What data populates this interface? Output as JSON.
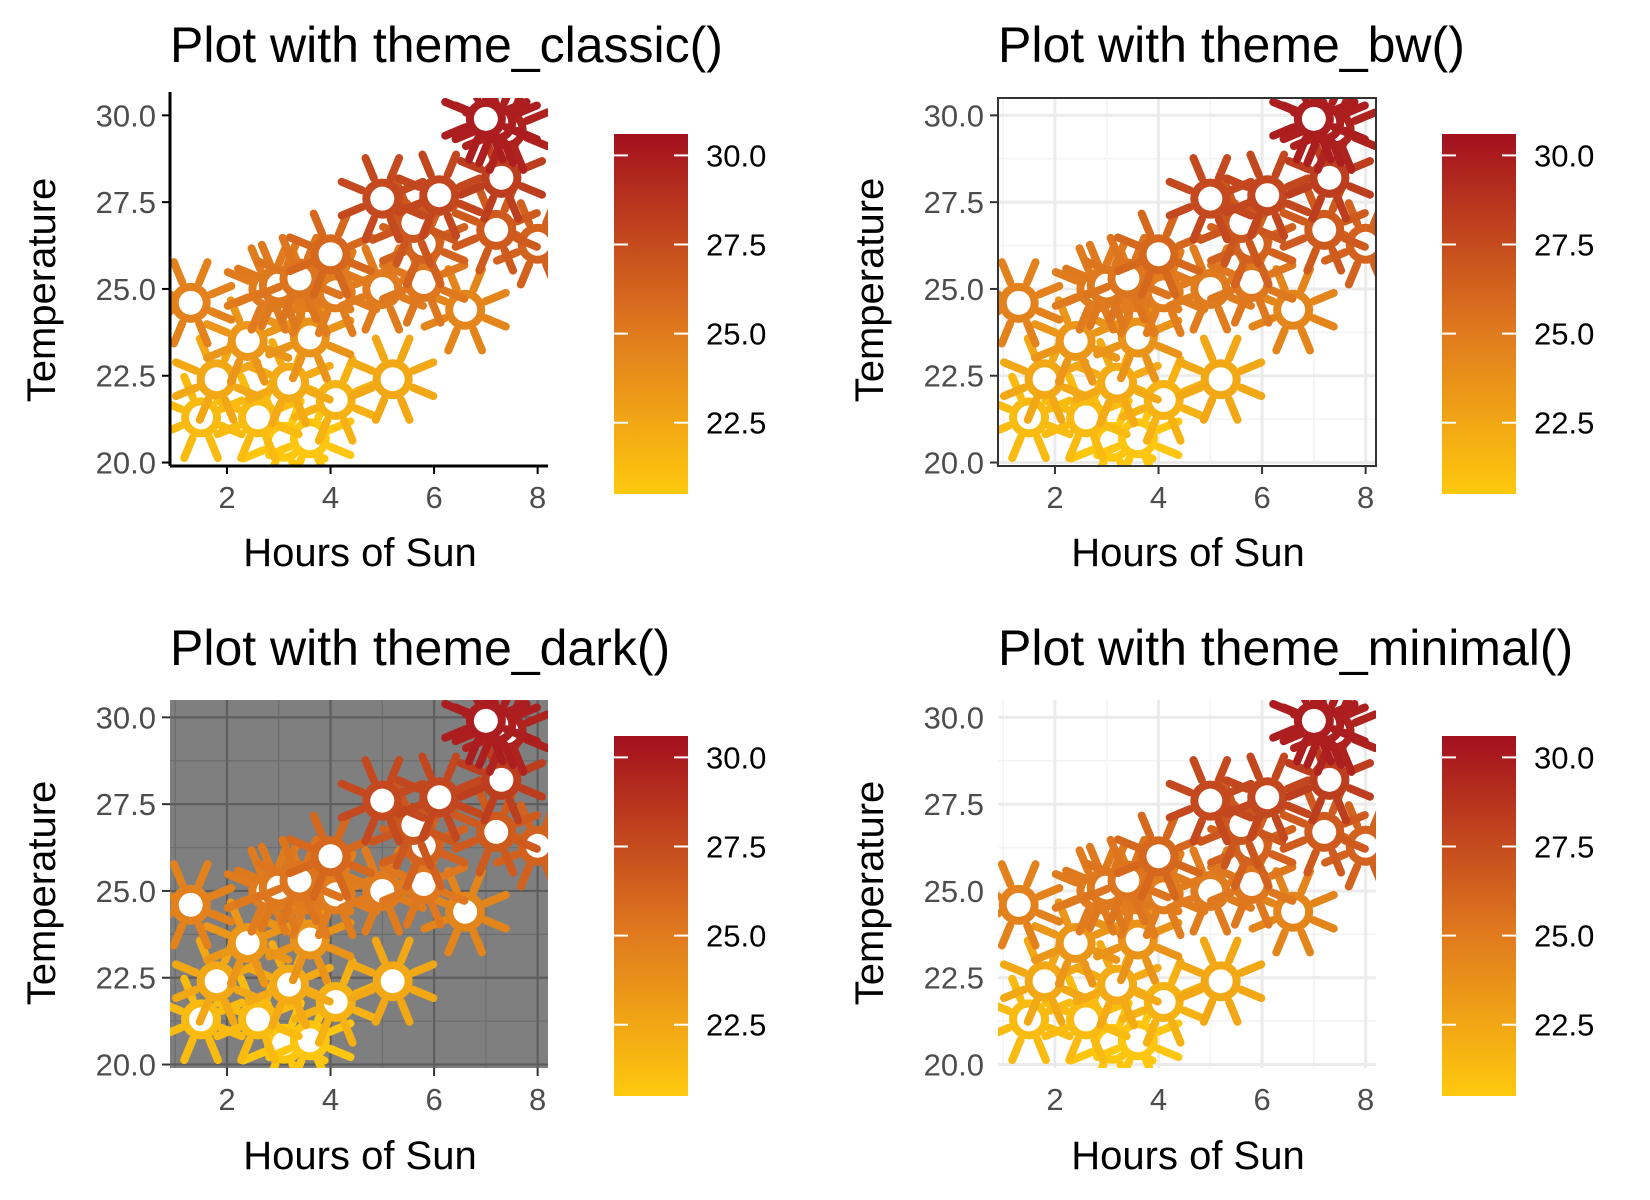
{
  "chart_data": [
    {
      "type": "scatter",
      "title": "Plot with theme_classic()",
      "theme": "classic",
      "grid": false,
      "xlabel": "Hours of Sun",
      "ylabel": "Temperature",
      "xlim": [
        0.9,
        8.2
      ],
      "ylim": [
        19.9,
        30.5
      ],
      "xticks": [
        2,
        4,
        6,
        8
      ],
      "xtick_labels": [
        "2",
        "4",
        "6",
        "8"
      ],
      "yticks": [
        20,
        22.5,
        25,
        27.5,
        30
      ],
      "ytick_labels": [
        "20.0",
        "22.5",
        "25.0",
        "27.5",
        "30.0"
      ],
      "marker": "sun-icon",
      "legend_position": "right",
      "legend": {
        "type": "colorbar",
        "ticks": [
          22.5,
          25,
          27.5,
          30
        ],
        "tick_labels": [
          "22.5",
          "25.0",
          "27.5",
          "30.0"
        ],
        "limits": [
          20.5,
          30.6
        ],
        "low_color": "#FFC90E",
        "mid_color": "#E07A1E",
        "high_color": "#A3101E"
      },
      "points": [
        [
          1.3,
          24.6
        ],
        [
          1.5,
          21.3
        ],
        [
          1.8,
          22.4
        ],
        [
          2.4,
          23.5
        ],
        [
          2.6,
          21.3
        ],
        [
          3.0,
          25.1
        ],
        [
          3.1,
          20.6
        ],
        [
          3.2,
          22.3
        ],
        [
          3.4,
          25.3
        ],
        [
          3.6,
          20.7
        ],
        [
          3.6,
          23.6
        ],
        [
          3.6,
          24.9
        ],
        [
          4.1,
          21.8
        ],
        [
          4.0,
          26.0
        ],
        [
          4.1,
          24.9
        ],
        [
          5.0,
          25.0
        ],
        [
          5.0,
          27.6
        ],
        [
          5.2,
          22.4
        ],
        [
          5.8,
          26.3
        ],
        [
          5.8,
          25.2
        ],
        [
          6.1,
          27.7
        ],
        [
          6.6,
          24.4
        ],
        [
          7.2,
          26.7
        ],
        [
          7.2,
          29.8
        ],
        [
          7.3,
          28.2
        ],
        [
          8.0,
          26.3
        ],
        [
          7.0,
          29.9
        ],
        [
          7.4,
          29.6
        ],
        [
          5.6,
          26.9
        ],
        [
          2.8,
          25.0
        ]
      ]
    },
    {
      "type": "scatter",
      "title": "Plot with theme_bw()",
      "theme": "bw",
      "grid": true,
      "xlabel": "Hours of Sun",
      "ylabel": "Temperature",
      "xlim": [
        0.9,
        8.2
      ],
      "ylim": [
        19.9,
        30.5
      ],
      "xticks": [
        2,
        4,
        6,
        8
      ],
      "xtick_labels": [
        "2",
        "4",
        "6",
        "8"
      ],
      "yticks": [
        20,
        22.5,
        25,
        27.5,
        30
      ],
      "ytick_labels": [
        "20.0",
        "22.5",
        "25.0",
        "27.5",
        "30.0"
      ],
      "marker": "sun-icon",
      "legend_position": "right",
      "legend": {
        "type": "colorbar",
        "ticks": [
          22.5,
          25,
          27.5,
          30
        ],
        "tick_labels": [
          "22.5",
          "25.0",
          "27.5",
          "30.0"
        ],
        "limits": [
          20.5,
          30.6
        ],
        "low_color": "#FFC90E",
        "mid_color": "#E07A1E",
        "high_color": "#A3101E"
      },
      "points": [
        [
          1.3,
          24.6
        ],
        [
          1.5,
          21.3
        ],
        [
          1.8,
          22.4
        ],
        [
          2.4,
          23.5
        ],
        [
          2.6,
          21.3
        ],
        [
          3.0,
          25.1
        ],
        [
          3.1,
          20.6
        ],
        [
          3.2,
          22.3
        ],
        [
          3.4,
          25.3
        ],
        [
          3.6,
          20.7
        ],
        [
          3.6,
          23.6
        ],
        [
          3.6,
          24.9
        ],
        [
          4.1,
          21.8
        ],
        [
          4.0,
          26.0
        ],
        [
          4.1,
          24.9
        ],
        [
          5.0,
          25.0
        ],
        [
          5.0,
          27.6
        ],
        [
          5.2,
          22.4
        ],
        [
          5.8,
          26.3
        ],
        [
          5.8,
          25.2
        ],
        [
          6.1,
          27.7
        ],
        [
          6.6,
          24.4
        ],
        [
          7.2,
          26.7
        ],
        [
          7.2,
          29.8
        ],
        [
          7.3,
          28.2
        ],
        [
          8.0,
          26.3
        ],
        [
          7.0,
          29.9
        ],
        [
          7.4,
          29.6
        ],
        [
          5.6,
          26.9
        ],
        [
          2.8,
          25.0
        ]
      ]
    },
    {
      "type": "scatter",
      "title": "Plot with theme_dark()",
      "theme": "dark",
      "grid": true,
      "xlabel": "Hours of Sun",
      "ylabel": "Temperature",
      "xlim": [
        0.9,
        8.2
      ],
      "ylim": [
        19.9,
        30.5
      ],
      "xticks": [
        2,
        4,
        6,
        8
      ],
      "xtick_labels": [
        "2",
        "4",
        "6",
        "8"
      ],
      "yticks": [
        20,
        22.5,
        25,
        27.5,
        30
      ],
      "ytick_labels": [
        "20.0",
        "22.5",
        "25.0",
        "27.5",
        "30.0"
      ],
      "marker": "sun-icon",
      "legend_position": "right",
      "legend": {
        "type": "colorbar",
        "ticks": [
          22.5,
          25,
          27.5,
          30
        ],
        "tick_labels": [
          "22.5",
          "25.0",
          "27.5",
          "30.0"
        ],
        "limits": [
          20.5,
          30.6
        ],
        "low_color": "#FFC90E",
        "mid_color": "#E07A1E",
        "high_color": "#A3101E"
      },
      "points": [
        [
          1.3,
          24.6
        ],
        [
          1.5,
          21.3
        ],
        [
          1.8,
          22.4
        ],
        [
          2.4,
          23.5
        ],
        [
          2.6,
          21.3
        ],
        [
          3.0,
          25.1
        ],
        [
          3.1,
          20.6
        ],
        [
          3.2,
          22.3
        ],
        [
          3.4,
          25.3
        ],
        [
          3.6,
          20.7
        ],
        [
          3.6,
          23.6
        ],
        [
          3.6,
          24.9
        ],
        [
          4.1,
          21.8
        ],
        [
          4.0,
          26.0
        ],
        [
          4.1,
          24.9
        ],
        [
          5.0,
          25.0
        ],
        [
          5.0,
          27.6
        ],
        [
          5.2,
          22.4
        ],
        [
          5.8,
          26.3
        ],
        [
          5.8,
          25.2
        ],
        [
          6.1,
          27.7
        ],
        [
          6.6,
          24.4
        ],
        [
          7.2,
          26.7
        ],
        [
          7.2,
          29.8
        ],
        [
          7.3,
          28.2
        ],
        [
          8.0,
          26.3
        ],
        [
          7.0,
          29.9
        ],
        [
          7.4,
          29.6
        ],
        [
          5.6,
          26.9
        ],
        [
          2.8,
          25.0
        ]
      ]
    },
    {
      "type": "scatter",
      "title": "Plot with theme_minimal()",
      "theme": "minimal",
      "grid": true,
      "xlabel": "Hours of Sun",
      "ylabel": "Temperature",
      "xlim": [
        0.9,
        8.2
      ],
      "ylim": [
        19.9,
        30.5
      ],
      "xticks": [
        2,
        4,
        6,
        8
      ],
      "xtick_labels": [
        "2",
        "4",
        "6",
        "8"
      ],
      "yticks": [
        20,
        22.5,
        25,
        27.5,
        30
      ],
      "ytick_labels": [
        "20.0",
        "22.5",
        "25.0",
        "27.5",
        "30.0"
      ],
      "marker": "sun-icon",
      "legend_position": "right",
      "legend": {
        "type": "colorbar",
        "ticks": [
          22.5,
          25,
          27.5,
          30
        ],
        "tick_labels": [
          "22.5",
          "25.0",
          "27.5",
          "30.0"
        ],
        "limits": [
          20.5,
          30.6
        ],
        "low_color": "#FFC90E",
        "mid_color": "#E07A1E",
        "high_color": "#A3101E"
      },
      "points": [
        [
          1.3,
          24.6
        ],
        [
          1.5,
          21.3
        ],
        [
          1.8,
          22.4
        ],
        [
          2.4,
          23.5
        ],
        [
          2.6,
          21.3
        ],
        [
          3.0,
          25.1
        ],
        [
          3.1,
          20.6
        ],
        [
          3.2,
          22.3
        ],
        [
          3.4,
          25.3
        ],
        [
          3.6,
          20.7
        ],
        [
          3.6,
          23.6
        ],
        [
          3.6,
          24.9
        ],
        [
          4.1,
          21.8
        ],
        [
          4.0,
          26.0
        ],
        [
          4.1,
          24.9
        ],
        [
          5.0,
          25.0
        ],
        [
          5.0,
          27.6
        ],
        [
          5.2,
          22.4
        ],
        [
          5.8,
          26.3
        ],
        [
          5.8,
          25.2
        ],
        [
          6.1,
          27.7
        ],
        [
          6.6,
          24.4
        ],
        [
          7.2,
          26.7
        ],
        [
          7.2,
          29.8
        ],
        [
          7.3,
          28.2
        ],
        [
          8.0,
          26.3
        ],
        [
          7.0,
          29.9
        ],
        [
          7.4,
          29.6
        ],
        [
          5.6,
          26.9
        ],
        [
          2.8,
          25.0
        ]
      ]
    }
  ]
}
